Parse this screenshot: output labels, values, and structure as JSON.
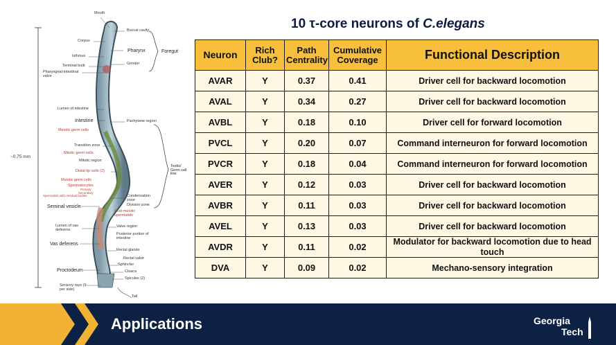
{
  "slide": {
    "title_prefix": "10 ",
    "title_tau": "τ",
    "title_mid": "-core neurons of ",
    "title_species": "C.elegans"
  },
  "worm_labels": {
    "mouth": "Mouth",
    "buccal_cavity": "Buccal cavity",
    "corpus": "Corpus",
    "pharynx": "Pharynx",
    "foregut": "Foregut",
    "isthmus": "Isthmus",
    "terminal_bulb": "Terminal bulb",
    "grinder": "Grinder",
    "pharyngeal_intestinal_valve": "Pharyngeal-intestinal valve",
    "lumen_of_intestine": "Lumen of intestine",
    "intestine": "Intestine",
    "pachytene_region": "Pachytene region",
    "meiotic_germ_cells_1": "Meiotic germ cells",
    "transition_zone": "Transition zone",
    "mitotic_germ_cells": "Mitotic germ cells",
    "mitotic_region": "Mitotic region",
    "length": "~0.75 mm",
    "distal_tip_cells": "Distal tip cells (2)",
    "testis_germ_cell_line": "Testis/ Germ cell line",
    "meiotic_germ_cells_2": "Meiotic germ cells",
    "spermatocytes": "Spermatocytes",
    "primary": "Primary",
    "secondary": "Secondary",
    "spermatids_residual": "Spermatids with residual bodies",
    "condensation_zone": "Condensation zone",
    "division_zone": "Division zone",
    "seminal_vesicle": "Seminal vesicle",
    "post_meiotic_spermatids": "Post-meiotic spermatids",
    "lumen_vas_deferens": "Lumen of vas deferens",
    "valve_region": "Valve region",
    "posterior_portion": "Posterior portion of intestine",
    "vas_deferens": "Vas deferens",
    "rectal_glands": "Rectal glands",
    "rectal_valve": "Rectal valve",
    "proctodeum": "Proctodeum",
    "sphincter": "Sphincter",
    "cloaca": "Cloaca",
    "spicules": "Spicules (2)",
    "sensory_rays": "Sensory rays (9 per side)",
    "tail": "Tail"
  },
  "table": {
    "headers": {
      "neuron": "Neuron",
      "rich_club_1": "Rich",
      "rich_club_2": "Club?",
      "path_1": "Path",
      "path_2": "Centrality",
      "cum_1": "Cumulative",
      "cum_2": "Coverage",
      "func": "Functional Description"
    },
    "rows": [
      {
        "neuron": "AVAR",
        "rich": "Y",
        "path": "0.37",
        "cov": "0.41",
        "desc": "Driver cell for backward locomotion"
      },
      {
        "neuron": "AVAL",
        "rich": "Y",
        "path": "0.34",
        "cov": "0.27",
        "desc": "Driver cell for backward locomotion"
      },
      {
        "neuron": "AVBL",
        "rich": "Y",
        "path": "0.18",
        "cov": "0.10",
        "desc": "Driver cell for forward locomotion"
      },
      {
        "neuron": "PVCL",
        "rich": "Y",
        "path": "0.20",
        "cov": "0.07",
        "desc": "Command interneuron for forward locomotion"
      },
      {
        "neuron": "PVCR",
        "rich": "Y",
        "path": "0.18",
        "cov": "0.04",
        "desc": "Command interneuron for forward locomotion"
      },
      {
        "neuron": "AVER",
        "rich": "Y",
        "path": "0.12",
        "cov": "0.03",
        "desc": "Driver cell for backward locomotion"
      },
      {
        "neuron": "AVBR",
        "rich": "Y",
        "path": "0.11",
        "cov": "0.03",
        "desc": "Driver cell for backward locomotion"
      },
      {
        "neuron": "AVEL",
        "rich": "Y",
        "path": "0.13",
        "cov": "0.03",
        "desc": "Driver cell for backward locomotion"
      },
      {
        "neuron": "AVDR",
        "rich": "Y",
        "path": "0.11",
        "cov": "0.02",
        "desc": "Modulator for backward locomotion due to head touch"
      },
      {
        "neuron": "DVA",
        "rich": "Y",
        "path": "0.09",
        "cov": "0.02",
        "desc": "Mechano-sensory integration"
      }
    ]
  },
  "footer": {
    "title": "Applications",
    "logo_line1": "Georgia",
    "logo_line2": "Tech"
  },
  "colors": {
    "header_fill": "#f7bf3b",
    "cell_fill": "#fdf7e3",
    "footer_bg": "#0c2144",
    "chevron": "#f2b233"
  }
}
